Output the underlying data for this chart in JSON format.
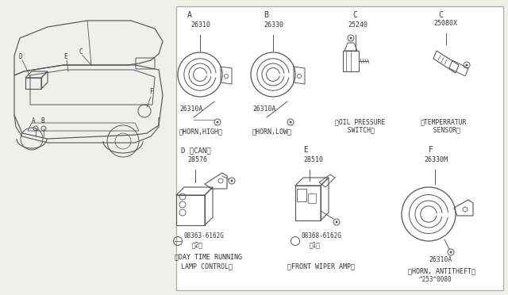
{
  "bg_color": "#f0f0eb",
  "line_color": "#555555",
  "text_color": "#333333",
  "border_color": "#aaaaaa",
  "parts": {
    "A_label": "A",
    "A_part1": "26310",
    "A_part2": "26310A",
    "A_desc": "〈HORN,HIGH〉",
    "B_label": "B",
    "B_part1": "26330",
    "B_part2": "26310A",
    "B_desc": "〈HORN,LOW〉",
    "C1_label": "C",
    "C1_part": "25240",
    "C1_desc1": "〈OIL PRESSURE",
    "C1_desc2": "  SWITCH〉",
    "C2_label": "C",
    "C2_part": "25080X",
    "C2_desc1": "〈TEMPERRATUR",
    "C2_desc2": "  SENSOR〉",
    "D_label": "D 〈CAN〉",
    "D_part1": "28576",
    "D_part2": "Ⓝ08363-6162G",
    "D_part2b": "。2〃",
    "D_desc1": "〈DAY TIME RUNNING",
    "D_desc2": "  LAMP CONTROL〉",
    "E_label": "E",
    "E_part1": "28510",
    "E_part2": "Ⓝ08368-6162G",
    "E_part2b": "。1〃",
    "E_desc": "〈FRONT WIPER AMP〉",
    "F_label": "F",
    "F_part1": "26330M",
    "F_part2": "26310A",
    "F_desc": "〈HORN, ANTITHEFT〉",
    "F_note": "^253^0080"
  }
}
